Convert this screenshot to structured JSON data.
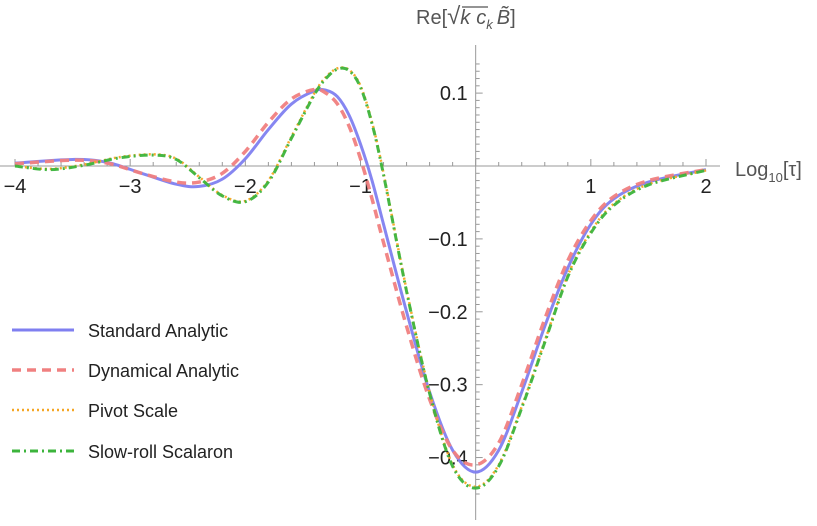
{
  "chart_data": {
    "type": "line",
    "title": "",
    "xlabel": "Log10[τ]",
    "xlabel_parts": {
      "base": "Log",
      "sub": "10",
      "rest": "[τ]"
    },
    "ylabel": "Re[√k c_k B̃]",
    "ylabel_parts": {
      "pre": "Re[",
      "root": "√",
      "k": "k",
      "c": "c",
      "csub": "k",
      "B": "B̃",
      "post": "]"
    },
    "xlim": [
      -4,
      2
    ],
    "ylim": [
      -0.46,
      0.15
    ],
    "xticks": [
      -4,
      -3,
      -2,
      -1,
      1,
      2
    ],
    "xtick_labels": [
      "−4",
      "−3",
      "−2",
      "−1",
      "1",
      "2"
    ],
    "yticks": [
      0.1,
      -0.1,
      -0.2,
      -0.3,
      -0.4
    ],
    "ytick_labels": [
      "0.1",
      "−0.1",
      "−0.2",
      "−0.3",
      "−0.4"
    ],
    "grid": false,
    "legend_position": "bottom-left",
    "series": [
      {
        "name": "Standard Analytic",
        "color": "#7f7ff0",
        "style": "solid",
        "x": [
          -4.0,
          -3.5,
          -3.2,
          -2.9,
          -2.6,
          -2.4,
          -2.2,
          -2.0,
          -1.8,
          -1.6,
          -1.4,
          -1.3,
          -1.2,
          -1.1,
          -1.0,
          -0.9,
          -0.8,
          -0.6,
          -0.4,
          -0.2,
          0.0,
          0.2,
          0.4,
          0.6,
          0.8,
          1.0,
          1.2,
          1.5,
          2.0
        ],
        "y": [
          0.004,
          0.009,
          0.005,
          -0.01,
          -0.025,
          -0.028,
          -0.018,
          0.01,
          0.05,
          0.085,
          0.103,
          0.104,
          0.095,
          0.07,
          0.03,
          -0.02,
          -0.08,
          -0.2,
          -0.31,
          -0.39,
          -0.42,
          -0.39,
          -0.31,
          -0.22,
          -0.14,
          -0.08,
          -0.045,
          -0.022,
          -0.005
        ]
      },
      {
        "name": "Dynamical Analytic",
        "color": "#f08080",
        "style": "dashed",
        "x": [
          -4.0,
          -3.5,
          -3.2,
          -2.9,
          -2.6,
          -2.4,
          -2.2,
          -2.0,
          -1.8,
          -1.6,
          -1.4,
          -1.3,
          -1.2,
          -1.1,
          -1.0,
          -0.9,
          -0.8,
          -0.6,
          -0.4,
          -0.2,
          0.0,
          0.2,
          0.4,
          0.6,
          0.8,
          1.0,
          1.2,
          1.5,
          2.0
        ],
        "y": [
          0.003,
          0.008,
          0.004,
          -0.01,
          -0.022,
          -0.022,
          -0.01,
          0.02,
          0.06,
          0.092,
          0.105,
          0.1,
          0.085,
          0.055,
          0.01,
          -0.045,
          -0.105,
          -0.22,
          -0.32,
          -0.39,
          -0.41,
          -0.38,
          -0.3,
          -0.21,
          -0.13,
          -0.075,
          -0.042,
          -0.02,
          -0.005
        ]
      },
      {
        "name": "Pivot Scale",
        "color": "#f5a623",
        "style": "dotted",
        "x": [
          -4.0,
          -3.7,
          -3.4,
          -3.1,
          -2.8,
          -2.6,
          -2.4,
          -2.2,
          -2.0,
          -1.8,
          -1.6,
          -1.4,
          -1.3,
          -1.2,
          -1.1,
          -1.0,
          -0.9,
          -0.8,
          -0.6,
          -0.4,
          -0.2,
          0.0,
          0.2,
          0.4,
          0.6,
          0.8,
          1.0,
          1.2,
          1.5,
          2.0
        ],
        "y": [
          0.0,
          -0.004,
          0.002,
          0.012,
          0.016,
          0.01,
          -0.015,
          -0.04,
          -0.048,
          -0.02,
          0.04,
          0.1,
          0.122,
          0.134,
          0.132,
          0.11,
          0.06,
          -0.01,
          -0.17,
          -0.31,
          -0.41,
          -0.44,
          -0.41,
          -0.33,
          -0.24,
          -0.15,
          -0.09,
          -0.052,
          -0.025,
          -0.006
        ]
      },
      {
        "name": "Slow-roll Scalaron",
        "color": "#3cb43c",
        "style": "dashdot",
        "x": [
          -4.0,
          -3.7,
          -3.4,
          -3.1,
          -2.8,
          -2.6,
          -2.4,
          -2.2,
          -2.0,
          -1.8,
          -1.6,
          -1.4,
          -1.3,
          -1.2,
          -1.1,
          -1.0,
          -0.9,
          -0.8,
          -0.6,
          -0.4,
          -0.2,
          0.0,
          0.2,
          0.4,
          0.6,
          0.8,
          1.0,
          1.2,
          1.5,
          2.0
        ],
        "y": [
          0.0,
          -0.005,
          0.001,
          0.011,
          0.015,
          0.009,
          -0.016,
          -0.041,
          -0.049,
          -0.022,
          0.038,
          0.098,
          0.12,
          0.133,
          0.131,
          0.108,
          0.058,
          -0.012,
          -0.172,
          -0.312,
          -0.412,
          -0.442,
          -0.412,
          -0.332,
          -0.242,
          -0.152,
          -0.092,
          -0.054,
          -0.026,
          -0.006
        ]
      }
    ]
  }
}
